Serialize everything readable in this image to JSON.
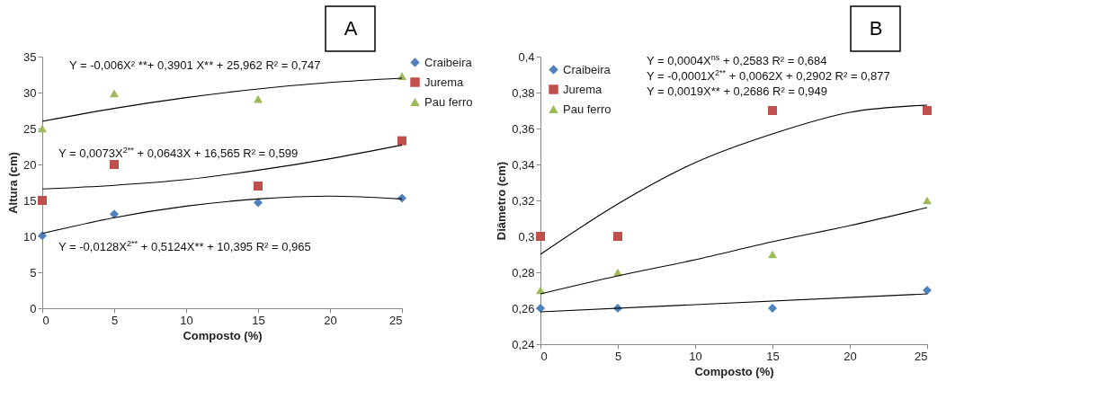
{
  "chart_data": [
    {
      "type": "scatter",
      "xlabel": "Composto (%)",
      "ylabel": "Altura (cm)",
      "x": [
        0,
        5,
        15,
        25
      ],
      "xlim": [
        0,
        25
      ],
      "xticks": [
        0,
        5,
        10,
        15,
        20,
        25
      ],
      "ylim": [
        0,
        35
      ],
      "yticks": [
        0,
        5,
        10,
        15,
        20,
        25,
        30,
        35
      ],
      "grid": false,
      "legend": "right",
      "series": [
        {
          "name": "Craibeira",
          "color": "#4f81bd",
          "marker": "diamond",
          "values": [
            10.1,
            13.1,
            14.7,
            15.3
          ]
        },
        {
          "name": "Jurema",
          "color": "#c0504d",
          "marker": "square",
          "values": [
            15,
            20,
            17,
            23.3
          ]
        },
        {
          "name": "Pau ferro",
          "color": "#9bbb59",
          "marker": "triangle",
          "values": [
            25,
            29.9,
            29.1,
            32.3
          ]
        },
        {
          "type": "line",
          "color": "#000000",
          "x": [
            0,
            5,
            10,
            15,
            20,
            25
          ],
          "values": [
            26.0,
            27.8,
            29.3,
            30.5,
            31.4,
            32.0
          ]
        },
        {
          "type": "line",
          "color": "#000000",
          "x": [
            0,
            5,
            10,
            15,
            20,
            25
          ],
          "values": [
            16.6,
            17.1,
            17.9,
            19.2,
            20.8,
            22.7
          ]
        },
        {
          "type": "line",
          "color": "#000000",
          "x": [
            0,
            5,
            10,
            15,
            20,
            25
          ],
          "values": [
            10.4,
            12.6,
            14.2,
            15.2,
            15.6,
            15.2
          ]
        }
      ],
      "annotations": [
        "Y = -0,006X² **+ 0,3901 X** + 25,962 R² = 0,747",
        "Y = 0,0073X$^{2**}$ + 0,0643X + 16,565 R² = 0,599",
        "Y = -0,0128X$^{2**}$ + 0,5124X** + 10,395 R² = 0,965",
        "A"
      ]
    },
    {
      "type": "scatter",
      "xlabel": "Composto (%)",
      "ylabel": "Diâmetro (cm)",
      "x": [
        0,
        5,
        15,
        25
      ],
      "xlim": [
        0,
        25
      ],
      "xticks": [
        0,
        5,
        10,
        15,
        20,
        25
      ],
      "ylim": [
        0.24,
        0.4
      ],
      "yticks": [
        {
          "value": 0.24,
          "label": "0,24"
        },
        {
          "value": 0.26,
          "label": "0,26"
        },
        {
          "value": 0.28,
          "label": "0,28"
        },
        {
          "value": 0.3,
          "label": "0,3"
        },
        {
          "value": 0.32,
          "label": "0,32"
        },
        {
          "value": 0.34,
          "label": "0,34"
        },
        {
          "value": 0.36,
          "label": "0,36"
        },
        {
          "value": 0.38,
          "label": "0,38"
        },
        {
          "value": 0.4,
          "label": "0,4"
        }
      ],
      "grid": false,
      "legend": "top left",
      "series": [
        {
          "name": "Craibeira",
          "color": "#4f81bd",
          "marker": "diamond",
          "values": [
            0.26,
            0.26,
            0.26,
            0.27
          ]
        },
        {
          "name": "Jurema",
          "color": "#c0504d",
          "marker": "square",
          "values": [
            0.3,
            0.3,
            0.37,
            0.37
          ]
        },
        {
          "name": "Pau ferro",
          "color": "#9bbb59",
          "marker": "triangle",
          "values": [
            0.27,
            0.28,
            0.29,
            0.32
          ]
        },
        {
          "type": "line",
          "color": "#000000",
          "x": [
            0,
            5,
            10,
            15,
            20,
            25
          ],
          "values": [
            0.29,
            0.318,
            0.341,
            0.357,
            0.369,
            0.373
          ]
        },
        {
          "type": "line",
          "color": "#000000",
          "x": [
            0,
            5,
            10,
            15,
            20,
            25
          ],
          "values": [
            0.268,
            0.278,
            0.287,
            0.297,
            0.306,
            0.316
          ]
        },
        {
          "type": "line",
          "color": "#000000",
          "x": [
            0,
            25
          ],
          "values": [
            0.258,
            0.268
          ]
        }
      ],
      "annotations": [
        "Y = 0,0004X$^{ns}$ + 0,2583 R² = 0,684",
        "Y = -0,0001X$^{2**}$ + 0,0062X + 0,2902 R² = 0,877",
        "Y = 0,0019X** + 0,2686 R² = 0,949",
        "B"
      ]
    }
  ]
}
